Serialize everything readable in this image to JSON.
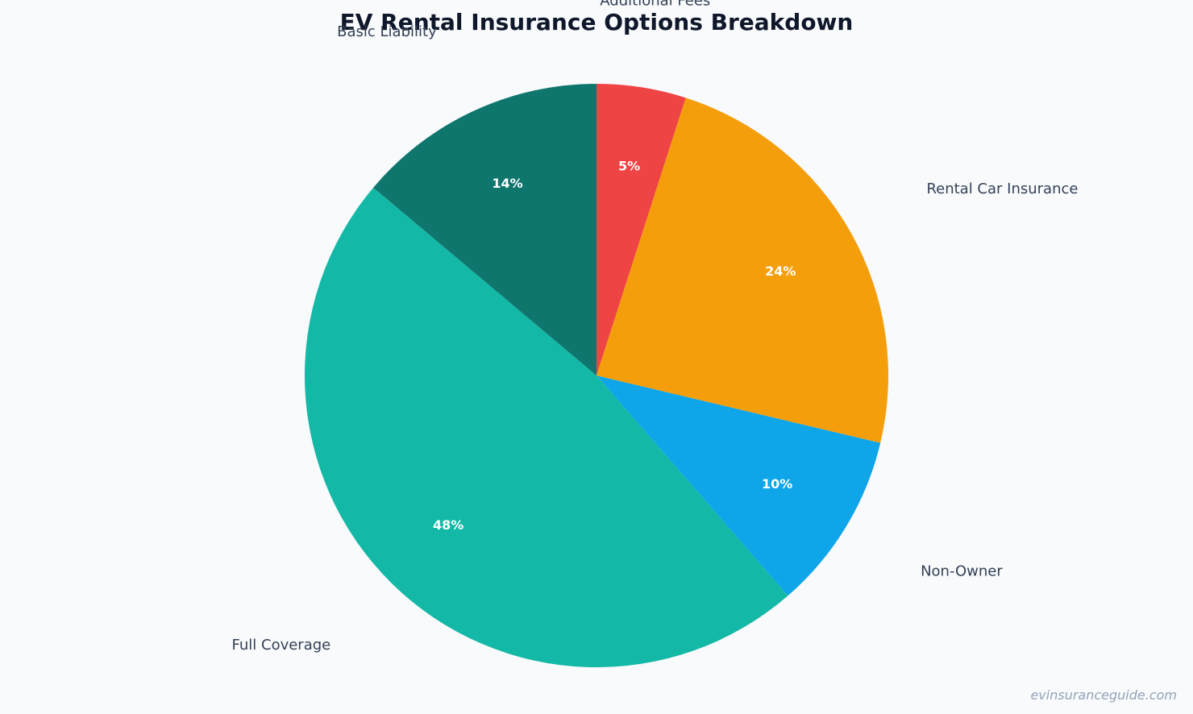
{
  "chart_data": {
    "type": "pie",
    "title": "EV Rental Insurance Options Breakdown",
    "slices": [
      {
        "label": "Additional Fees",
        "value": 5,
        "pct_label": "5%",
        "color": "#ef4444"
      },
      {
        "label": "Rental Car Insurance",
        "value": 24,
        "pct_label": "24%",
        "color": "#f59e0b"
      },
      {
        "label": "Non-Owner",
        "value": 10,
        "pct_label": "10%",
        "color": "#0ea5e9"
      },
      {
        "label": "Full Coverage",
        "value": 48,
        "pct_label": "48%",
        "color": "#14b8a6"
      },
      {
        "label": "Basic Liability",
        "value": 14,
        "pct_label": "14%",
        "color": "#0f766e"
      }
    ],
    "start_angle": "12 o'clock",
    "direction": "clockwise"
  },
  "watermark": "evinsuranceguide.com"
}
